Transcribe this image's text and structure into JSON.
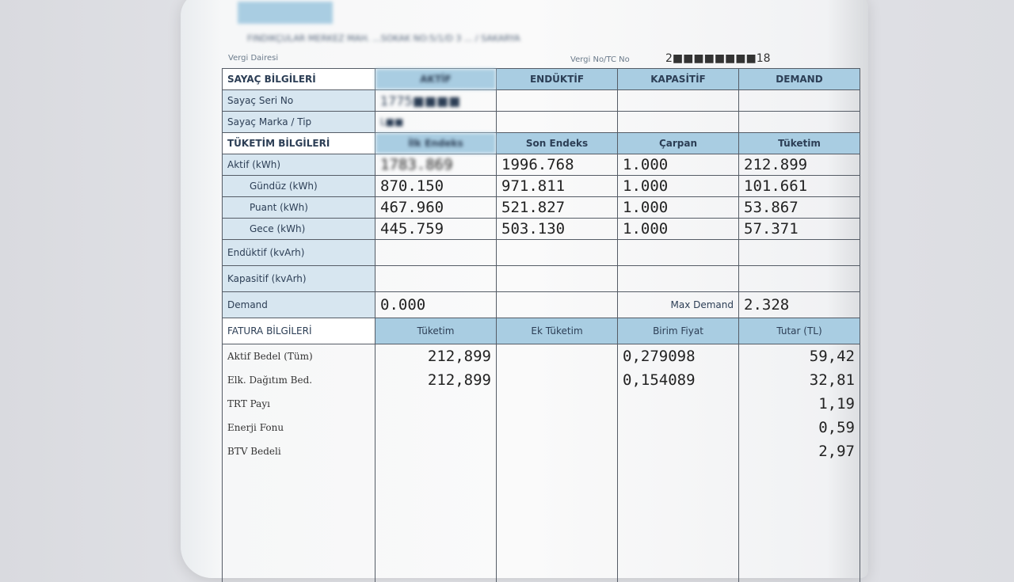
{
  "header": {
    "address": "FINDIKÇULAR MERKEZ MAH. ...SOKAK NO:5/1/D 3 ... / SAKARYA",
    "tax_office_label": "Vergi Dairesi",
    "tax_no_label": "Vergi No/TC No",
    "tax_no": "2■■■■■■■■18"
  },
  "meter": {
    "section": "SAYAÇ BİLGİLERİ",
    "columns": [
      "AKTİF",
      "ENDÜKTİF",
      "KAPASİTİF",
      "DEMAND"
    ],
    "serial_label": "Sayaç Seri No",
    "serial": "1775■■■■",
    "brand_label": "Sayaç Marka / Tip",
    "brand": "L■■"
  },
  "consumption": {
    "section": "TÜKETİM BİLGİLERİ",
    "columns": [
      "İlk Endeks",
      "Son Endeks",
      "Çarpan",
      "Tüketim"
    ],
    "rows": [
      {
        "label": "Aktif (kWh)",
        "first": "1783.869",
        "last": "1996.768",
        "mult": "1.000",
        "total": "212.899"
      },
      {
        "label": "Gündüz (kWh)",
        "first": "870.150",
        "last": "971.811",
        "mult": "1.000",
        "total": "101.661"
      },
      {
        "label": "Puant (kWh)",
        "first": "467.960",
        "last": "521.827",
        "mult": "1.000",
        "total": "53.867"
      },
      {
        "label": "Gece (kWh)",
        "first": "445.759",
        "last": "503.130",
        "mult": "1.000",
        "total": "57.371"
      }
    ],
    "inductive_label": "Endüktif (kvArh)",
    "capacitive_label": "Kapasitif (kvArh)",
    "demand_label": "Demand",
    "demand": "0.000",
    "max_demand_label": "Max Demand",
    "max_demand": "2.328"
  },
  "invoice": {
    "section": "FATURA BİLGİLERİ",
    "columns": [
      "Tüketim",
      "Ek Tüketim",
      "Birim Fiyat",
      "Tutar (TL)"
    ],
    "rows": [
      {
        "label": "Aktif Bedel (Tüm)",
        "qty": "212,899",
        "price": "0,279098",
        "amount": "59,42"
      },
      {
        "label": "Elk. Dağıtım Bed.",
        "qty": "212,899",
        "price": "0,154089",
        "amount": "32,81"
      },
      {
        "label": "TRT Payı",
        "qty": "",
        "price": "",
        "amount": "1,19"
      },
      {
        "label": "Enerji Fonu",
        "qty": "",
        "price": "",
        "amount": "0,59"
      },
      {
        "label": "BTV Bedeli",
        "qty": "",
        "price": "",
        "amount": "2,97"
      }
    ]
  }
}
